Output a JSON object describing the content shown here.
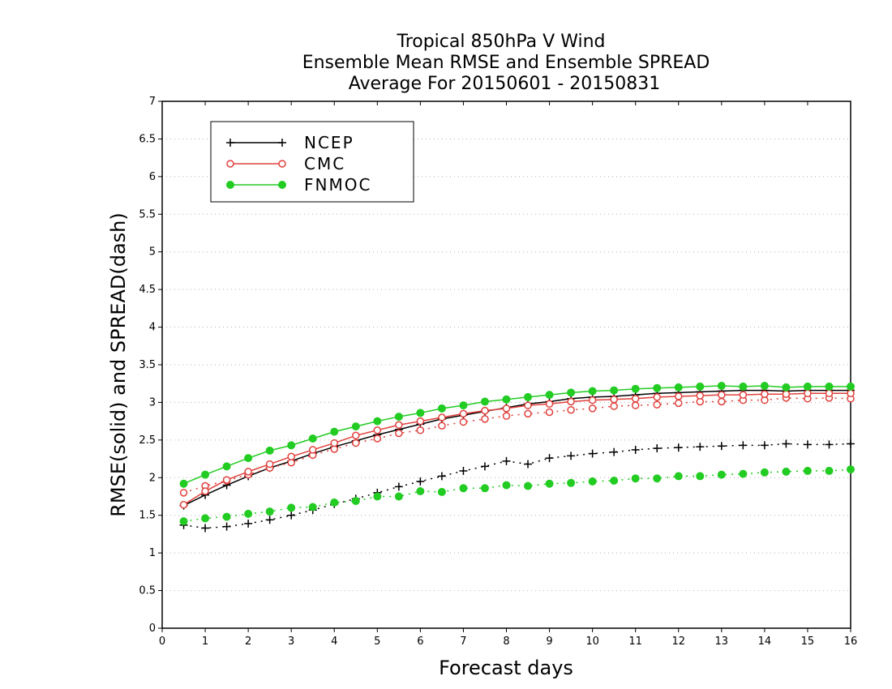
{
  "chart_data": {
    "type": "line",
    "title": [
      "Tropical 850hPa V Wind",
      "Ensemble Mean RMSE and Ensemble SPREAD",
      "Average For 20150601 - 20150831"
    ],
    "xlabel": "Forecast days",
    "ylabel": "RMSE(solid) and SPREAD(dash)",
    "xlim": [
      0,
      16
    ],
    "ylim": [
      0,
      7
    ],
    "xticks": [
      "0",
      "1",
      "2",
      "3",
      "4",
      "5",
      "6",
      "7",
      "8",
      "9",
      "10",
      "11",
      "12",
      "13",
      "14",
      "15",
      "16"
    ],
    "yticks": [
      "0",
      "0.5",
      "1",
      "1.5",
      "2",
      "2.5",
      "3",
      "3.5",
      "4",
      "4.5",
      "5",
      "5.5",
      "6",
      "6.5",
      "7"
    ],
    "grid": "horizontal dotted",
    "legend_position": "top-left",
    "x": [
      0.5,
      1,
      1.5,
      2,
      2.5,
      3,
      3.5,
      4,
      4.5,
      5,
      5.5,
      6,
      6.5,
      7,
      7.5,
      8,
      8.5,
      9,
      9.5,
      10,
      10.5,
      11,
      11.5,
      12,
      12.5,
      13,
      13.5,
      14,
      14.5,
      15,
      15.5,
      16
    ],
    "series": [
      {
        "name": "NCEP",
        "color": "#000000",
        "marker": "plus",
        "rmse": [
          1.63,
          1.77,
          1.9,
          2.02,
          2.13,
          2.22,
          2.32,
          2.41,
          2.49,
          2.57,
          2.64,
          2.71,
          2.78,
          2.83,
          2.88,
          2.93,
          2.98,
          3.01,
          3.05,
          3.07,
          3.08,
          3.1,
          3.12,
          3.13,
          3.14,
          3.15,
          3.16,
          3.16,
          3.15,
          3.16,
          3.16,
          3.16
        ],
        "spread": [
          1.37,
          1.33,
          1.35,
          1.39,
          1.44,
          1.5,
          1.57,
          1.65,
          1.72,
          1.8,
          1.88,
          1.95,
          2.02,
          2.09,
          2.15,
          2.22,
          2.18,
          2.26,
          2.29,
          2.32,
          2.34,
          2.37,
          2.39,
          2.4,
          2.41,
          2.42,
          2.43,
          2.43,
          2.45,
          2.44,
          2.44,
          2.45
        ]
      },
      {
        "name": "CMC",
        "color": "#e0403c",
        "marker": "open-circle",
        "rmse": [
          1.64,
          1.82,
          1.97,
          2.08,
          2.18,
          2.28,
          2.37,
          2.46,
          2.56,
          2.63,
          2.7,
          2.75,
          2.8,
          2.85,
          2.89,
          2.92,
          2.96,
          2.98,
          3.01,
          3.03,
          3.04,
          3.05,
          3.07,
          3.08,
          3.09,
          3.1,
          3.1,
          3.11,
          3.11,
          3.12,
          3.12,
          3.12
        ],
        "spread": [
          1.8,
          1.89,
          1.96,
          2.04,
          2.13,
          2.2,
          2.3,
          2.38,
          2.46,
          2.52,
          2.59,
          2.63,
          2.69,
          2.74,
          2.78,
          2.82,
          2.85,
          2.87,
          2.9,
          2.92,
          2.95,
          2.96,
          2.97,
          2.99,
          3.01,
          3.01,
          3.03,
          3.03,
          3.06,
          3.05,
          3.06,
          3.05
        ]
      },
      {
        "name": "FNMOC",
        "color": "#22cc22",
        "marker": "filled-circle",
        "rmse": [
          1.92,
          2.04,
          2.15,
          2.26,
          2.36,
          2.43,
          2.52,
          2.61,
          2.68,
          2.75,
          2.81,
          2.86,
          2.92,
          2.96,
          3.01,
          3.04,
          3.07,
          3.1,
          3.13,
          3.15,
          3.16,
          3.18,
          3.19,
          3.2,
          3.21,
          3.22,
          3.21,
          3.22,
          3.2,
          3.21,
          3.21,
          3.21
        ],
        "spread": [
          1.42,
          1.46,
          1.48,
          1.52,
          1.55,
          1.6,
          1.61,
          1.67,
          1.69,
          1.75,
          1.75,
          1.82,
          1.81,
          1.86,
          1.86,
          1.9,
          1.89,
          1.92,
          1.93,
          1.95,
          1.96,
          1.99,
          1.99,
          2.02,
          2.02,
          2.04,
          2.05,
          2.07,
          2.08,
          2.09,
          2.09,
          2.11
        ]
      }
    ]
  }
}
